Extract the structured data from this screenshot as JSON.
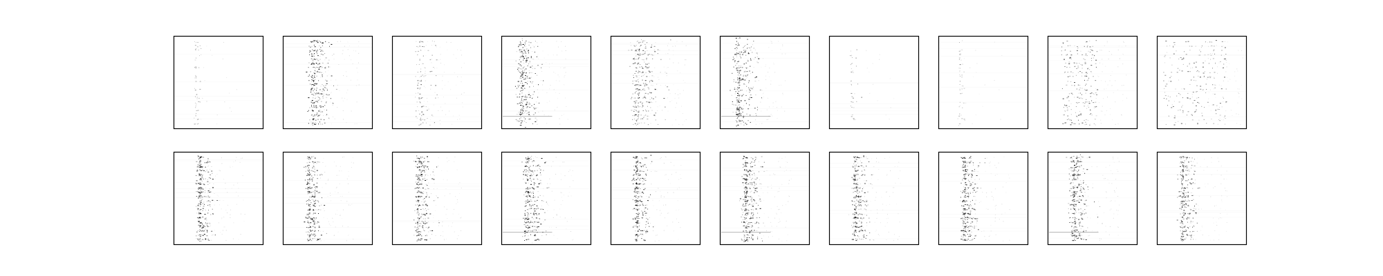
{
  "figure": {
    "rows": 2,
    "cols": 10,
    "background": "#ffffff",
    "frame_color": "#000000",
    "ink_color": "#000000"
  },
  "chart_data": {
    "type": "heatmap",
    "colormap": "gray_r",
    "axes_visible": false,
    "ticks": "none",
    "title": "",
    "xlabel": "",
    "ylabel": "",
    "panels": [
      {
        "row": 0,
        "col": 0,
        "pattern": "narrow-column",
        "column_center": 0.25,
        "spread": 0.02,
        "density": 0.25,
        "dashes": 0
      },
      {
        "row": 0,
        "col": 1,
        "pattern": "dense-band",
        "column_center": 0.35,
        "spread": 0.05,
        "density": 0.9,
        "dashes": 0
      },
      {
        "row": 0,
        "col": 2,
        "pattern": "sparse-band",
        "column_center": 0.3,
        "spread": 0.05,
        "density": 0.45,
        "dashes": 0
      },
      {
        "row": 0,
        "col": 3,
        "pattern": "diffuse-column",
        "column_center": 0.24,
        "spread": 0.05,
        "density": 0.85,
        "dashes": 1
      },
      {
        "row": 0,
        "col": 4,
        "pattern": "dense-band",
        "column_center": 0.32,
        "spread": 0.07,
        "density": 0.6,
        "dashes": 0
      },
      {
        "row": 0,
        "col": 5,
        "pattern": "diffuse-column",
        "column_center": 0.22,
        "spread": 0.06,
        "density": 0.9,
        "dashes": 1
      },
      {
        "row": 0,
        "col": 6,
        "pattern": "narrow-column",
        "column_center": 0.25,
        "spread": 0.02,
        "density": 0.3,
        "dashes": 0
      },
      {
        "row": 0,
        "col": 7,
        "pattern": "narrow-column",
        "column_center": 0.24,
        "spread": 0.015,
        "density": 0.18,
        "dashes": 0
      },
      {
        "row": 0,
        "col": 8,
        "pattern": "wide-band",
        "column_center": 0.35,
        "spread": 0.08,
        "density": 0.6,
        "dashes": 0
      },
      {
        "row": 0,
        "col": 9,
        "pattern": "wide-band",
        "column_center": 0.42,
        "spread": 0.14,
        "density": 0.5,
        "dashes": 0
      },
      {
        "row": 1,
        "col": 0,
        "pattern": "dense-band",
        "column_center": 0.3,
        "spread": 0.04,
        "density": 0.8,
        "dashes": 0
      },
      {
        "row": 1,
        "col": 1,
        "pattern": "dense-band",
        "column_center": 0.3,
        "spread": 0.04,
        "density": 0.8,
        "dashes": 0
      },
      {
        "row": 1,
        "col": 2,
        "pattern": "dense-band",
        "column_center": 0.3,
        "spread": 0.04,
        "density": 0.8,
        "dashes": 0
      },
      {
        "row": 1,
        "col": 3,
        "pattern": "dense-band",
        "column_center": 0.3,
        "spread": 0.05,
        "density": 0.85,
        "dashes": 1
      },
      {
        "row": 1,
        "col": 4,
        "pattern": "dense-band",
        "column_center": 0.3,
        "spread": 0.04,
        "density": 0.8,
        "dashes": 0
      },
      {
        "row": 1,
        "col": 5,
        "pattern": "dense-band",
        "column_center": 0.3,
        "spread": 0.05,
        "density": 0.85,
        "dashes": 1
      },
      {
        "row": 1,
        "col": 6,
        "pattern": "dense-band",
        "column_center": 0.3,
        "spread": 0.04,
        "density": 0.75,
        "dashes": 0
      },
      {
        "row": 1,
        "col": 7,
        "pattern": "dense-band",
        "column_center": 0.3,
        "spread": 0.04,
        "density": 0.75,
        "dashes": 0
      },
      {
        "row": 1,
        "col": 8,
        "pattern": "dense-band",
        "column_center": 0.3,
        "spread": 0.045,
        "density": 0.8,
        "dashes": 1
      },
      {
        "row": 1,
        "col": 9,
        "pattern": "dense-band",
        "column_center": 0.3,
        "spread": 0.04,
        "density": 0.75,
        "dashes": 0
      }
    ]
  }
}
